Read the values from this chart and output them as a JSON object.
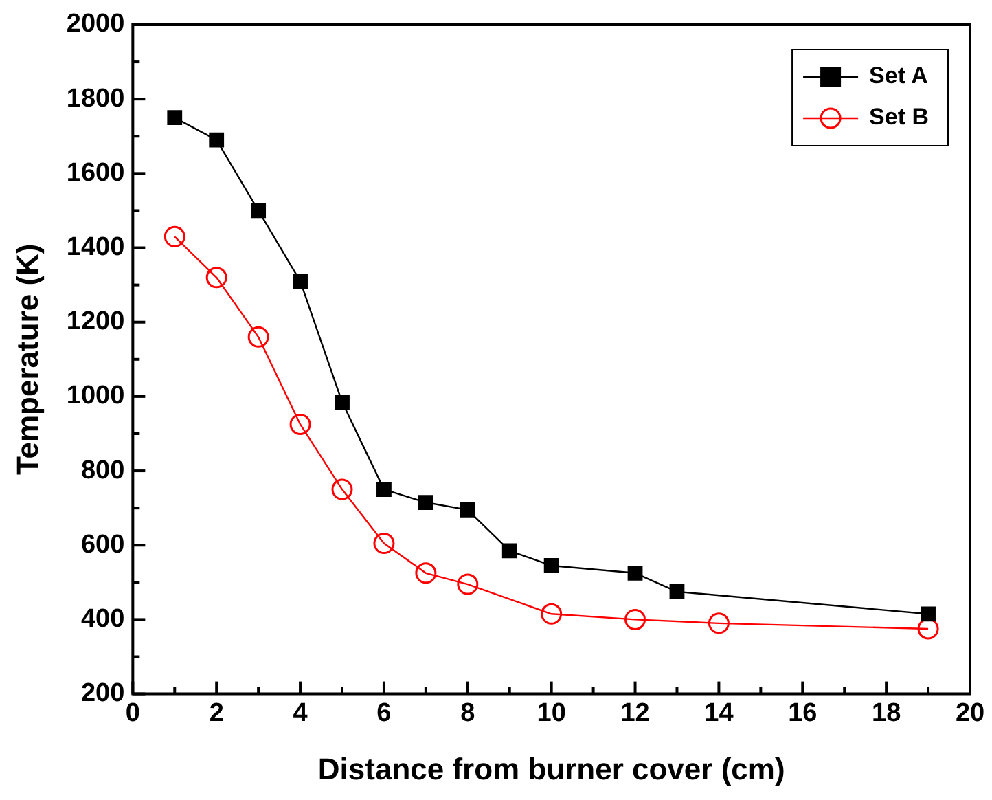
{
  "chart_data": {
    "type": "line",
    "xlabel": "Distance from burner cover (cm)",
    "ylabel": "Temperature (K)",
    "xlim": [
      0,
      20
    ],
    "ylim": [
      200,
      2000
    ],
    "xticks": [
      0,
      {
        "value": 1,
        "label": null
      },
      2,
      {
        "value": 3,
        "label": null
      },
      4,
      {
        "value": 5,
        "label": null
      },
      6,
      {
        "value": 7,
        "label": null
      },
      8,
      {
        "value": 9,
        "label": null
      },
      10,
      {
        "value": 11,
        "label": null
      },
      12,
      {
        "value": 13,
        "label": null
      },
      14,
      {
        "value": 15,
        "label": null
      },
      16,
      {
        "value": 17,
        "label": null
      },
      18,
      {
        "value": 19,
        "label": null
      },
      20
    ],
    "yticks": [
      200,
      {
        "value": 300,
        "label": null
      },
      400,
      {
        "value": 500,
        "label": null
      },
      600,
      {
        "value": 700,
        "label": null
      },
      800,
      {
        "value": 900,
        "label": null
      },
      1000,
      {
        "value": 1100,
        "label": null
      },
      1200,
      {
        "value": 1300,
        "label": null
      },
      1400,
      {
        "value": 1500,
        "label": null
      },
      1600,
      {
        "value": 1700,
        "label": null
      },
      1800,
      {
        "value": 1900,
        "label": null
      },
      2000
    ],
    "grid": false,
    "legend": "top right",
    "line_style": "solid",
    "series": [
      {
        "name": "Set A",
        "color": "#000000",
        "marker": "square",
        "x": [
          1,
          2,
          3,
          4,
          5,
          6,
          7,
          8,
          9,
          10,
          12,
          13,
          19
        ],
        "values": [
          1750,
          1690,
          1500,
          1310,
          985,
          750,
          715,
          695,
          585,
          545,
          525,
          475,
          415
        ]
      },
      {
        "name": "Set B",
        "color": "#ff0000",
        "marker": "circle",
        "x": [
          1,
          2,
          3,
          4,
          5,
          6,
          7,
          8,
          10,
          12,
          14,
          19
        ],
        "values": [
          1430,
          1320,
          1160,
          925,
          750,
          605,
          525,
          495,
          415,
          400,
          390,
          375
        ]
      }
    ]
  }
}
